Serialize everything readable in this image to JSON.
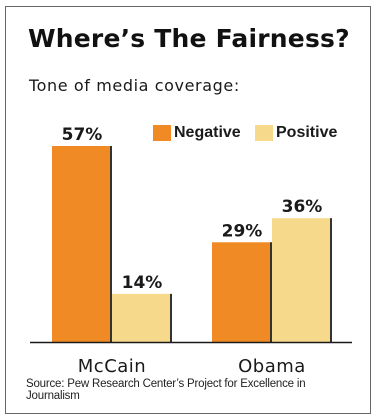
{
  "chart_data": {
    "type": "bar",
    "title": "Where’s The Fairness?",
    "subtitle": "Tone of media coverage:",
    "categories": [
      "McCain",
      "Obama"
    ],
    "series": [
      {
        "name": "Negative",
        "values": [
          57,
          29
        ],
        "color": "#f08a24"
      },
      {
        "name": "Positive",
        "values": [
          14,
          36
        ],
        "color": "#f7d98c"
      }
    ],
    "value_labels": [
      [
        "57%",
        "29%"
      ],
      [
        "14%",
        "36%"
      ]
    ],
    "ylim": [
      0,
      57
    ],
    "legend_position": "top-right",
    "grid": false,
    "source": "Source: Pew Research Center’s Project for Excellence in Journalism"
  }
}
